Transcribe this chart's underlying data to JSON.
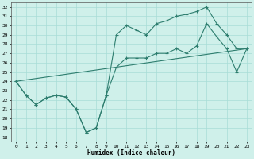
{
  "bg_color": "#cff0ea",
  "line_color": "#2d7d6e",
  "grid_color": "#a8ddd6",
  "xlabel": "Humidex (Indice chaleur)",
  "ylabel_ticks": [
    18,
    19,
    20,
    21,
    22,
    23,
    24,
    25,
    26,
    27,
    28,
    29,
    30,
    31,
    32
  ],
  "xlim": [
    -0.5,
    23.5
  ],
  "ylim": [
    17.5,
    32.5
  ],
  "xticks": [
    0,
    1,
    2,
    3,
    4,
    5,
    6,
    7,
    8,
    9,
    10,
    11,
    12,
    13,
    14,
    15,
    16,
    17,
    18,
    19,
    20,
    21,
    22,
    23
  ],
  "line1_x": [
    0,
    1,
    2,
    3,
    4,
    5,
    6,
    7,
    8,
    9,
    10,
    11,
    12,
    13,
    14,
    15,
    16,
    17,
    18,
    19,
    20,
    21,
    22,
    23
  ],
  "line1_y": [
    24.0,
    22.5,
    21.5,
    22.2,
    22.5,
    22.3,
    21.0,
    18.5,
    19.0,
    22.5,
    29.0,
    30.0,
    29.5,
    29.0,
    30.2,
    30.5,
    31.0,
    31.2,
    31.5,
    32.0,
    30.2,
    29.0,
    27.5,
    27.5
  ],
  "line2_x": [
    0,
    1,
    2,
    3,
    4,
    5,
    6,
    7,
    8,
    9,
    10,
    11,
    12,
    13,
    14,
    15,
    16,
    17,
    18,
    19,
    20,
    21,
    22,
    23
  ],
  "line2_y": [
    24.0,
    22.5,
    21.5,
    22.2,
    22.5,
    22.3,
    21.0,
    18.5,
    19.0,
    22.5,
    25.5,
    26.5,
    26.5,
    26.5,
    27.0,
    27.0,
    27.5,
    27.0,
    27.8,
    30.2,
    28.8,
    27.5,
    25.0,
    27.5
  ],
  "line3_x": [
    0,
    23
  ],
  "line3_y": [
    24.0,
    27.5
  ]
}
